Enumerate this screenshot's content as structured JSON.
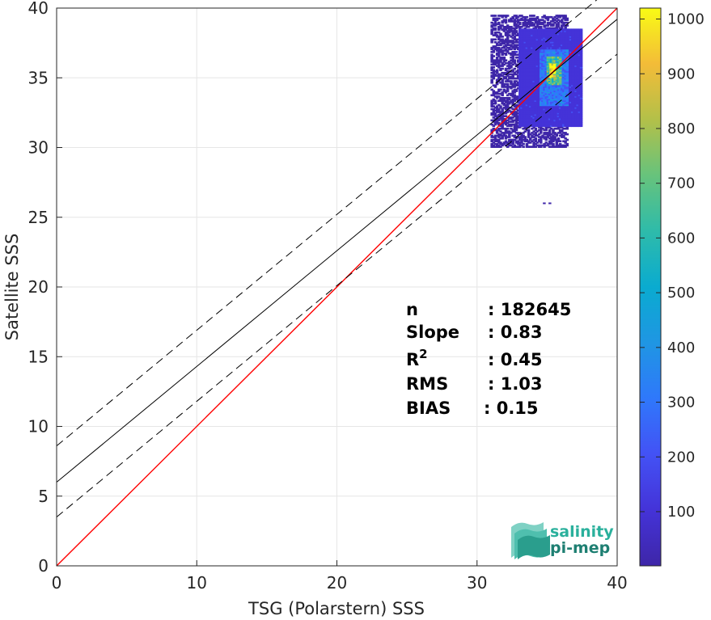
{
  "chart_data": {
    "type": "heatmap",
    "xlabel": "TSG (Polarstern) SSS",
    "ylabel": "Satellite SSS",
    "xlim": [
      0,
      40
    ],
    "ylim": [
      0,
      40
    ],
    "x_ticks": [
      0,
      10,
      20,
      30,
      40
    ],
    "y_ticks": [
      0,
      5,
      10,
      15,
      20,
      25,
      30,
      35,
      40
    ],
    "grid": true,
    "colorbar": {
      "range": [
        1,
        1020
      ],
      "ticks": [
        100,
        200,
        300,
        400,
        500,
        600,
        700,
        800,
        900,
        1000
      ],
      "colormap": "parula"
    },
    "lines": [
      {
        "name": "1:1",
        "color": "#ff0000",
        "style": "solid",
        "points": [
          [
            0,
            0
          ],
          [
            40,
            40
          ]
        ]
      },
      {
        "name": "fit",
        "color": "#000000",
        "style": "solid",
        "points": [
          [
            0,
            6.0
          ],
          [
            40,
            39.2
          ]
        ]
      },
      {
        "name": "fit+",
        "color": "#000000",
        "style": "dashed",
        "points": [
          [
            0,
            8.6
          ],
          [
            40,
            41.8
          ]
        ]
      },
      {
        "name": "fit-",
        "color": "#000000",
        "style": "dashed",
        "points": [
          [
            0,
            3.5
          ],
          [
            40,
            36.7
          ]
        ]
      }
    ],
    "density_clusters": [
      {
        "x": [
          31.0,
          36.5
        ],
        "y": [
          30.0,
          39.5
        ],
        "level": 40
      },
      {
        "x": [
          33.0,
          37.5
        ],
        "y": [
          31.5,
          38.5
        ],
        "level": 120
      },
      {
        "x": [
          34.5,
          36.5
        ],
        "y": [
          33.0,
          37.0
        ],
        "level": 300
      },
      {
        "x": [
          35.0,
          36.0
        ],
        "y": [
          34.5,
          36.5
        ],
        "level": 650
      },
      {
        "x": [
          35.2,
          35.6
        ],
        "y": [
          35.0,
          36.0
        ],
        "level": 1000
      }
    ],
    "stats": [
      {
        "label": "n",
        "value": ": 182645"
      },
      {
        "label": "Slope",
        "value": ": 0.83"
      },
      {
        "label": "R",
        "sup": "2",
        "value": ": 0.45"
      },
      {
        "label": "RMS",
        "value": ": 1.03"
      },
      {
        "label": "BIAS",
        "value": ": 0.15"
      }
    ]
  },
  "logo": {
    "line1": "salinity",
    "line2": "pi-mep",
    "color1": "#2ab09c",
    "color2": "#1e7f72"
  }
}
